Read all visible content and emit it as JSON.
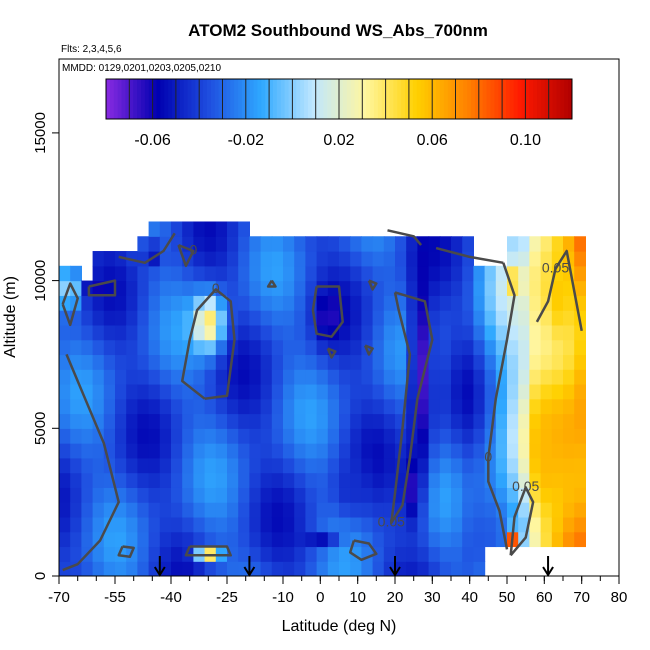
{
  "chart_data": {
    "type": "heatmap",
    "title": "ATOM2 Southbound WS_Abs_700nm",
    "annotations": {
      "flights": "Flts: 2,3,4,5,6",
      "dates": "MMDD: 0129,0201,0203,0205,0210"
    },
    "xlabel": "Latitude (deg N)",
    "ylabel": "Altitude (m)",
    "xlim": [
      -70,
      80
    ],
    "ylim": [
      0,
      17500
    ],
    "x_ticks": [
      -70,
      -55,
      -40,
      -25,
      -10,
      0,
      10,
      20,
      30,
      40,
      50,
      60,
      70,
      80
    ],
    "x_tick_labels": [
      "-70",
      "-55",
      "-40",
      "-25",
      "-10",
      "0",
      "10",
      "20",
      "30",
      "40",
      "50",
      "60",
      "70",
      "80"
    ],
    "y_ticks": [
      0,
      5000,
      10000,
      15000
    ],
    "y_tick_labels": [
      "0",
      "5000",
      "10000",
      "15000"
    ],
    "grid": false,
    "colorbar": {
      "range": [
        -0.08,
        0.12
      ],
      "ticks": [
        -0.06,
        -0.02,
        0.02,
        0.06,
        0.1
      ],
      "tick_labels": [
        "-0.06",
        "-0.02",
        "0.02",
        "0.06",
        "0.10"
      ],
      "colors": [
        "#8a2be2",
        "#0000b0",
        "#1f4fe0",
        "#2fa8ff",
        "#bfe7ff",
        "#fff6a0",
        "#ffd000",
        "#ff8000",
        "#ff1a00",
        "#b00000"
      ]
    },
    "column_latitudes": [
      -68.5,
      -65.5,
      -62.5,
      -59.5,
      -56.5,
      -53.5,
      -50.5,
      -47.5,
      -44.5,
      -41.5,
      -38.5,
      -35.5,
      -32.5,
      -29.5,
      -26.5,
      -23.5,
      -20.5,
      -17.5,
      -14.5,
      -11.5,
      -8.5,
      -5.5,
      -2.5,
      0.5,
      3.5,
      6.5,
      9.5,
      12.5,
      15.5,
      18.5,
      21.5,
      24.5,
      27.5,
      30.5,
      33.5,
      36.5,
      39.5,
      42.5,
      45.5,
      48.5,
      51.5,
      54.5,
      57.5,
      60.5,
      63.5,
      66.5,
      69.5
    ],
    "row_altitudes": [
      250,
      750,
      1250,
      1750,
      2250,
      2750,
      3250,
      3750,
      4250,
      4750,
      5250,
      5750,
      6250,
      6750,
      7250,
      7750,
      8250,
      8750,
      9250,
      9750,
      10250,
      10750,
      11250,
      11750,
      12250
    ],
    "features": [
      {
        "lat": -30,
        "alt": 8600,
        "value": 0.04,
        "width_deg": 8,
        "height_m": 1800
      },
      {
        "lat": -30,
        "alt": 700,
        "value": 0.045,
        "width_deg": 6,
        "height_m": 500
      },
      {
        "lat": -67,
        "alt": 9700,
        "value": 0.05,
        "width_deg": 3,
        "height_m": 1200
      },
      {
        "lat": -60,
        "alt": 9800,
        "value": -0.06,
        "width_deg": 6,
        "height_m": 500
      },
      {
        "lat": 27,
        "alt": 7000,
        "value": -0.07,
        "width_deg": 6,
        "height_m": 8000
      },
      {
        "lat": 24,
        "alt": 3000,
        "value": -0.065,
        "width_deg": 5,
        "height_m": 2500
      },
      {
        "lat": 2,
        "alt": 8800,
        "value": -0.065,
        "width_deg": 6,
        "height_m": 1600
      },
      {
        "lat": -45,
        "alt": 10900,
        "value": -0.055,
        "width_deg": 5,
        "height_m": 800
      },
      {
        "lat": 0,
        "alt": 1200,
        "value": -0.055,
        "width_deg": 10,
        "height_m": 600
      },
      {
        "lat": 52,
        "alt": 10000,
        "value": 0.09,
        "width_deg": 4,
        "height_m": 500
      },
      {
        "lat": 52,
        "alt": 1200,
        "value": 0.1,
        "width_deg": 3,
        "height_m": 700
      },
      {
        "lat": 60,
        "alt": 4000,
        "value": 0.06,
        "width_deg": 8,
        "height_m": 3500
      },
      {
        "lat": 64,
        "alt": 9500,
        "value": 0.055,
        "width_deg": 8,
        "height_m": 3000
      },
      {
        "lat": 8,
        "alt": 3000,
        "value": -0.045,
        "width_deg": 10,
        "height_m": 2000
      }
    ],
    "contour_lines": [
      {
        "label": "0",
        "points": [
          [
            -31,
            6000
          ],
          [
            -25,
            6100
          ],
          [
            -23,
            8000
          ],
          [
            -24,
            9300
          ],
          [
            -28,
            9700
          ],
          [
            -33,
            9000
          ],
          [
            -35,
            8000
          ],
          [
            -37,
            6600
          ],
          [
            -31,
            6000
          ]
        ]
      },
      {
        "label": "",
        "points": [
          [
            -68,
            7500
          ],
          [
            -63,
            6000
          ],
          [
            -58,
            4500
          ],
          [
            -56,
            3500
          ],
          [
            -54,
            2500
          ],
          [
            -59,
            1200
          ],
          [
            -65,
            400
          ],
          [
            -69,
            200
          ]
        ]
      },
      {
        "label": "",
        "points": [
          [
            -53,
            1000
          ],
          [
            -50,
            950
          ],
          [
            -51,
            650
          ],
          [
            -54,
            700
          ],
          [
            -53,
            1000
          ]
        ]
      },
      {
        "label": "",
        "points": [
          [
            -35,
            1000
          ],
          [
            -25,
            1000
          ],
          [
            -24,
            700
          ],
          [
            -36,
            700
          ],
          [
            -35,
            1000
          ]
        ]
      },
      {
        "label": "",
        "points": [
          [
            -69,
            9200
          ],
          [
            -67,
            9900
          ],
          [
            -65,
            9400
          ],
          [
            -67,
            8500
          ],
          [
            -69,
            9200
          ]
        ]
      },
      {
        "label": "",
        "points": [
          [
            -62,
            9800
          ],
          [
            -55,
            10000
          ],
          [
            -55,
            9500
          ],
          [
            -62,
            9500
          ],
          [
            -62,
            9800
          ]
        ]
      },
      {
        "label": "",
        "points": [
          [
            -1,
            9800
          ],
          [
            5,
            9800
          ],
          [
            6,
            8600
          ],
          [
            3,
            8100
          ],
          [
            -1,
            8200
          ],
          [
            -2,
            9000
          ],
          [
            -1,
            9800
          ]
        ]
      },
      {
        "label": "0.05",
        "points": [
          [
            20,
            9600
          ],
          [
            28,
            9300
          ],
          [
            30,
            8000
          ],
          [
            26,
            6000
          ],
          [
            24,
            4000
          ],
          [
            22,
            2400
          ],
          [
            19,
            1800
          ],
          [
            20,
            2800
          ],
          [
            22,
            5000
          ],
          [
            24,
            7500
          ],
          [
            21,
            9000
          ],
          [
            20,
            9600
          ]
        ]
      },
      {
        "label": "",
        "points": [
          [
            9,
            1200
          ],
          [
            13,
            1100
          ],
          [
            15,
            750
          ],
          [
            11,
            550
          ],
          [
            8,
            800
          ],
          [
            9,
            1200
          ]
        ]
      },
      {
        "label": "0",
        "points": [
          [
            49,
            10600
          ],
          [
            52,
            9500
          ],
          [
            50,
            8000
          ],
          [
            47,
            6000
          ],
          [
            45,
            4000
          ],
          [
            45,
            3200
          ],
          [
            48,
            2200
          ],
          [
            50,
            900
          ]
        ]
      },
      {
        "label": "0.05",
        "points": [
          [
            51,
            700
          ],
          [
            55,
            1300
          ],
          [
            57,
            2500
          ],
          [
            55,
            3000
          ],
          [
            52,
            2000
          ],
          [
            51,
            700
          ]
        ]
      },
      {
        "label": "0.05",
        "points": [
          [
            58,
            8600
          ],
          [
            61,
            9300
          ],
          [
            63,
            10400
          ],
          [
            66,
            11000
          ],
          [
            70,
            8300
          ]
        ]
      },
      {
        "label": "",
        "points": [
          [
            -39,
            11600
          ],
          [
            -42,
            11000
          ],
          [
            -47,
            10600
          ],
          [
            -54,
            10800
          ]
        ]
      },
      {
        "label": "0",
        "points": [
          [
            -38,
            11200
          ],
          [
            -36,
            10500
          ],
          [
            -34,
            11000
          ],
          [
            -38,
            11200
          ]
        ]
      },
      {
        "label": "",
        "points": [
          [
            18,
            11700
          ],
          [
            25,
            11500
          ],
          [
            27,
            11200
          ]
        ]
      },
      {
        "label": "",
        "points": [
          [
            31,
            11100
          ],
          [
            40,
            10800
          ],
          [
            49,
            10600
          ]
        ]
      },
      {
        "label": "",
        "points": [
          [
            -13,
            10000
          ],
          [
            -12,
            9800
          ],
          [
            -14,
            9800
          ],
          [
            -13,
            10000
          ]
        ]
      },
      {
        "label": "",
        "points": [
          [
            13,
            10000
          ],
          [
            15,
            9900
          ],
          [
            14,
            9700
          ],
          [
            13,
            10000
          ]
        ]
      },
      {
        "label": "",
        "points": [
          [
            12,
            7800
          ],
          [
            14,
            7700
          ],
          [
            13,
            7500
          ],
          [
            12,
            7800
          ]
        ]
      },
      {
        "label": "",
        "points": [
          [
            2,
            7700
          ],
          [
            4,
            7600
          ],
          [
            3,
            7400
          ],
          [
            2,
            7700
          ]
        ]
      }
    ],
    "flight_markers": [
      -43,
      -19,
      20,
      61
    ]
  }
}
